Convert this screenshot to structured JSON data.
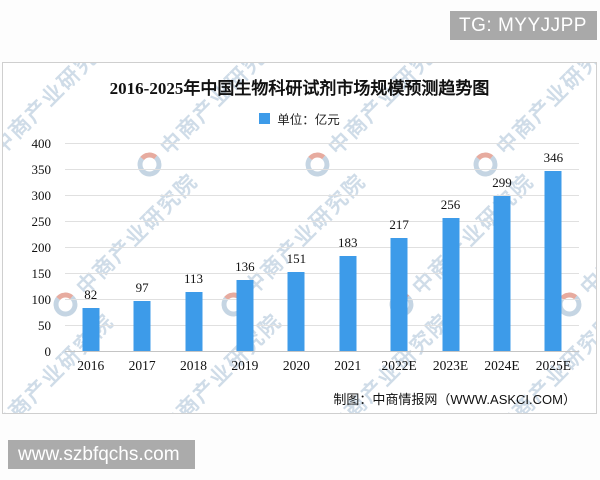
{
  "badge": {
    "text": "TG: MYYJJPP"
  },
  "site_watermark": {
    "text": "www.szbfqchs.com"
  },
  "chart": {
    "title": "2016-2025年中国生物科研试剂市场规模预测趋势图",
    "legend_label": "单位：亿元",
    "attribution": "制图：中商情报网（WWW.ASKCI.COM）",
    "watermark_text": "中商产业研究院"
  },
  "chart_data": {
    "type": "bar",
    "title": "2016-2025年中国生物科研试剂市场规模预测趋势图",
    "categories": [
      "2016",
      "2017",
      "2018",
      "2019",
      "2020",
      "2021",
      "2022E",
      "2023E",
      "2024E",
      "2025E"
    ],
    "values": [
      82,
      97,
      113,
      136,
      151,
      183,
      217,
      256,
      299,
      346
    ],
    "xlabel": "",
    "ylabel": "",
    "unit": "亿元",
    "legend": [
      "单位：亿元"
    ],
    "legend_position": "top-center",
    "ylim": [
      0,
      400
    ],
    "ytick_step": 50,
    "grid": true,
    "bar_color": "#3d9be9"
  },
  "colors": {
    "bar": "#3d9be9",
    "badge_bg": "#a9a9a9",
    "card_border": "#cfcfcf",
    "gridline": "#e0e0e0"
  }
}
